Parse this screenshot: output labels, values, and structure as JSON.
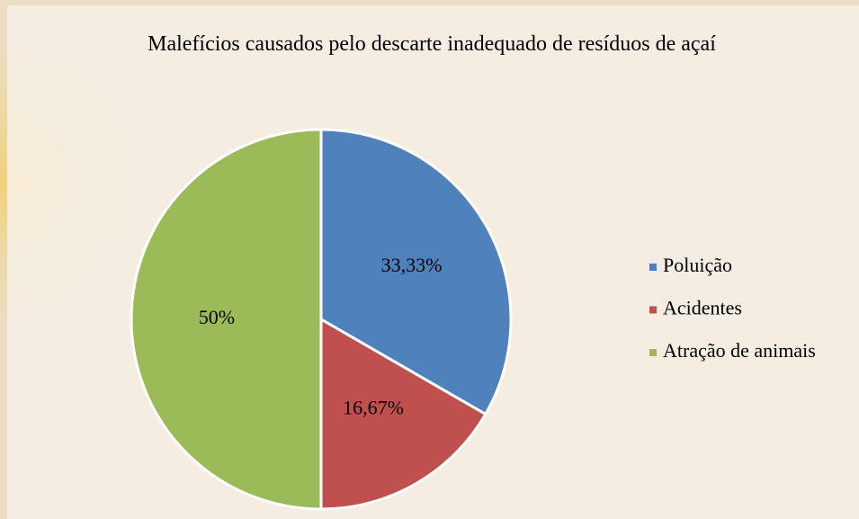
{
  "chart_data": {
    "type": "pie",
    "title": "Malefícios causados pelo descarte inadequado de resíduos de açaí",
    "categories": [
      "Poluição",
      "Acidentes",
      "Atração de animais"
    ],
    "values": [
      33.33,
      16.67,
      50
    ],
    "value_labels": [
      "33,33%",
      "16,67%",
      "50%"
    ],
    "colors": [
      "#4f81bd",
      "#c0504d",
      "#9bbb59"
    ],
    "legend": "right"
  }
}
